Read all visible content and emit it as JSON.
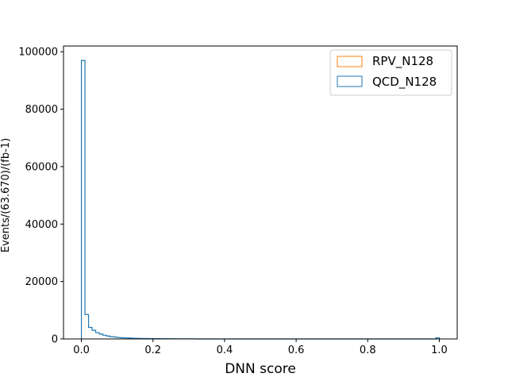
{
  "chart_data": {
    "type": "histogram",
    "title": "",
    "xlabel": "DNN score",
    "ylabel": "Events/(63.670)/(fb-1)",
    "xlim": [
      -0.05,
      1.05
    ],
    "ylim": [
      0,
      102000
    ],
    "x_ticks": [
      0.0,
      0.2,
      0.4,
      0.6,
      0.8,
      1.0
    ],
    "x_tick_labels": [
      "0.0",
      "0.2",
      "0.4",
      "0.6",
      "0.8",
      "1.0"
    ],
    "y_ticks": [
      0,
      20000,
      40000,
      60000,
      80000,
      100000
    ],
    "y_tick_labels": [
      "0",
      "20000",
      "40000",
      "60000",
      "80000",
      "100000"
    ],
    "grid": false,
    "legend_position": "top-right",
    "bin_width": 0.01,
    "bin_start": 0.0,
    "series": [
      {
        "name": "RPV_N128",
        "color": "#ff7f0e",
        "values": [],
        "note": ""
      },
      {
        "name": "QCD_N128",
        "color": "#1f77b4",
        "values": [
          97000,
          8500,
          4000,
          3000,
          2200,
          1700,
          1300,
          1000,
          800,
          650,
          500,
          420,
          360,
          300,
          260,
          220,
          190,
          160,
          140,
          120,
          110,
          100,
          90,
          80,
          70,
          60,
          55,
          50,
          45,
          40,
          35,
          30,
          0,
          0,
          0,
          0,
          0,
          0,
          0,
          0,
          0,
          0,
          0,
          0,
          0,
          0,
          0,
          0,
          0,
          0,
          0,
          0,
          0,
          0,
          0,
          0,
          0,
          0,
          0,
          0,
          0,
          0,
          0,
          0,
          0,
          0,
          0,
          0,
          0,
          0,
          0,
          0,
          0,
          0,
          0,
          0,
          0,
          0,
          0,
          0,
          0,
          0,
          0,
          0,
          0,
          0,
          0,
          0,
          0,
          0,
          0,
          0,
          0,
          0,
          0,
          0,
          0,
          0,
          0,
          400
        ]
      }
    ]
  }
}
